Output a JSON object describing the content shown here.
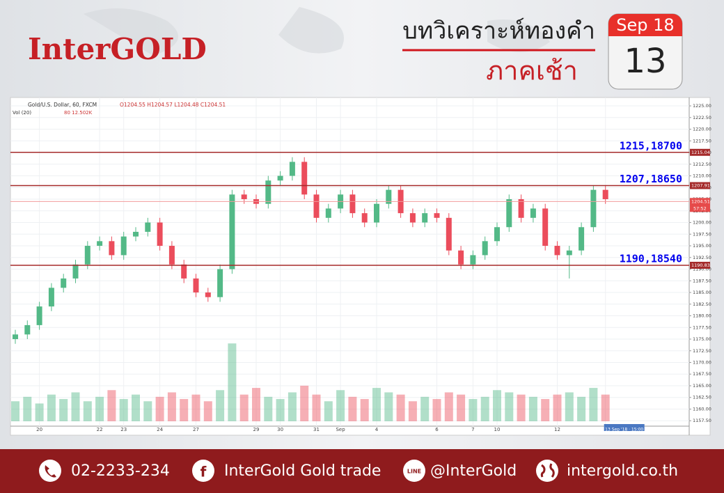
{
  "header": {
    "logo": "InterGOLD",
    "title": "บทวิเคราะห์ทองคำ",
    "subtitle": "ภาคเช้า",
    "calendar_month": "Sep 18",
    "calendar_day": "13"
  },
  "chart_data": {
    "type": "candlestick",
    "symbol_label": "Gold/U.S. Dollar, 60, FXCM",
    "ohlc_label": "O1204.55 H1204.57 L1204.48 C1204.51",
    "volume_label": "Vol (20)",
    "volume_info": "80  12.502K",
    "categories": [
      null,
      null,
      "20",
      null,
      null,
      null,
      null,
      "22",
      null,
      "23",
      null,
      null,
      "24",
      null,
      null,
      "27",
      null,
      null,
      null,
      null,
      "29",
      null,
      "30",
      null,
      null,
      "31",
      null,
      "Sep",
      null,
      null,
      "4",
      null,
      null,
      null,
      null,
      "6",
      null,
      null,
      "7",
      null,
      "10",
      null,
      null,
      null,
      null,
      "12",
      null,
      null,
      null,
      "13 Sep '18 · 15:00"
    ],
    "open": [
      1175,
      1176,
      1178,
      1182,
      1186,
      1188,
      1191,
      1195,
      1196,
      1193,
      1197,
      1198,
      1200,
      1195,
      1191,
      1188,
      1185,
      1184,
      1190,
      1206,
      1205,
      1204,
      1209,
      1210,
      1213,
      1206,
      1201,
      1203,
      1206,
      1202,
      1200,
      1204,
      1207,
      1202,
      1200,
      1202,
      1201,
      1194,
      1191,
      1193,
      1196,
      1199,
      1205,
      1201,
      1203,
      1195,
      1193,
      1194,
      1199,
      1207
    ],
    "high": [
      1177,
      1179,
      1183,
      1187,
      1189,
      1192,
      1196,
      1197,
      1197,
      1198,
      1199,
      1201,
      1201,
      1196,
      1192,
      1189,
      1186,
      1191,
      1207,
      1207,
      1206,
      1210,
      1211,
      1214,
      1214,
      1207,
      1204,
      1207,
      1207,
      1203,
      1205,
      1208,
      1208,
      1203,
      1203,
      1203,
      1202,
      1195,
      1194,
      1197,
      1200,
      1206,
      1206,
      1204,
      1204,
      1196,
      1195,
      1200,
      1208,
      1208
    ],
    "low": [
      1174,
      1175,
      1177,
      1181,
      1185,
      1187,
      1190,
      1194,
      1192,
      1192,
      1196,
      1197,
      1194,
      1190,
      1187,
      1184,
      1183,
      1183,
      1189,
      1204,
      1203,
      1203,
      1208,
      1209,
      1205,
      1200,
      1200,
      1202,
      1201,
      1199,
      1199,
      1203,
      1201,
      1199,
      1199,
      1200,
      1193,
      1190,
      1190,
      1192,
      1195,
      1198,
      1200,
      1200,
      1194,
      1192,
      1188,
      1193,
      1198,
      1204
    ],
    "close": [
      1176,
      1178,
      1182,
      1186,
      1188,
      1191,
      1195,
      1196,
      1193,
      1197,
      1198,
      1200,
      1195,
      1191,
      1188,
      1185,
      1184,
      1190,
      1206,
      1205,
      1204,
      1209,
      1210,
      1213,
      1206,
      1201,
      1203,
      1206,
      1202,
      1200,
      1204,
      1207,
      1202,
      1200,
      1202,
      1201,
      1194,
      1191,
      1193,
      1196,
      1199,
      1205,
      1201,
      1203,
      1195,
      1193,
      1194,
      1199,
      1207,
      1205
    ],
    "volume": [
      9,
      11,
      8,
      12,
      10,
      13,
      9,
      11,
      14,
      10,
      12,
      9,
      11,
      13,
      10,
      12,
      9,
      14,
      35,
      12,
      15,
      11,
      10,
      13,
      16,
      12,
      9,
      14,
      11,
      10,
      15,
      13,
      12,
      9,
      11,
      10,
      13,
      12,
      10,
      11,
      14,
      13,
      12,
      11,
      10,
      12,
      13,
      11,
      15,
      12
    ],
    "vlim": [
      0,
      36
    ],
    "bull_color": "#53b987",
    "bear_color": "#eb4d5c",
    "ylim": [
      1154.4,
      1226.8
    ],
    "yticks": [
      {
        "value": 1157.5,
        "label": "1157.50"
      },
      {
        "value": 1160,
        "label": "1160.00"
      },
      {
        "value": 1162.5,
        "label": "1162.50"
      },
      {
        "value": 1165,
        "label": "1165.00"
      },
      {
        "value": 1167.5,
        "label": "1167.50"
      },
      {
        "value": 1170,
        "label": "1170.00"
      },
      {
        "value": 1172.5,
        "label": "1172.50"
      },
      {
        "value": 1175,
        "label": "1175.00"
      },
      {
        "value": 1177.5,
        "label": "1177.50"
      },
      {
        "value": 1180,
        "label": "1180.00"
      },
      {
        "value": 1182.5,
        "label": "1182.50"
      },
      {
        "value": 1185,
        "label": "1185.00"
      },
      {
        "value": 1187.5,
        "label": "1187.50"
      },
      {
        "value": 1190,
        "label": "1190.00"
      },
      {
        "value": 1192.5,
        "label": "1192.50"
      },
      {
        "value": 1195,
        "label": "1195.00"
      },
      {
        "value": 1197.5,
        "label": "1197.50"
      },
      {
        "value": 1200,
        "label": "1200.00"
      },
      {
        "value": 1202.5,
        "label": "1202.50"
      },
      {
        "value": 1205,
        "label": "1205.00"
      },
      {
        "value": 1207.5,
        "label": "1207.50"
      },
      {
        "value": 1210,
        "label": "1210.00"
      },
      {
        "value": 1212.5,
        "label": "1212.50"
      },
      {
        "value": 1215,
        "label": "1215.00"
      },
      {
        "value": 1217.5,
        "label": "1217.50"
      },
      {
        "value": 1220,
        "label": "1220.00"
      },
      {
        "value": 1222.5,
        "label": "1222.50"
      },
      {
        "value": 1225,
        "label": "1225.00"
      }
    ],
    "grid": true,
    "levels": [
      {
        "value": 1215.04,
        "label": "1215,18700"
      },
      {
        "value": 1207.91,
        "label": "1207,18650"
      },
      {
        "value": 1190.83,
        "label": "1190,18540"
      }
    ],
    "level_color": "#a52a2a",
    "level_label_color": "#0000ee",
    "current_price": 1204.51,
    "countdown": "57:52"
  },
  "footer": {
    "phone": "02-2233-234",
    "facebook": "InterGold Gold trade",
    "line": "@InterGold",
    "website": "intergold.co.th"
  }
}
